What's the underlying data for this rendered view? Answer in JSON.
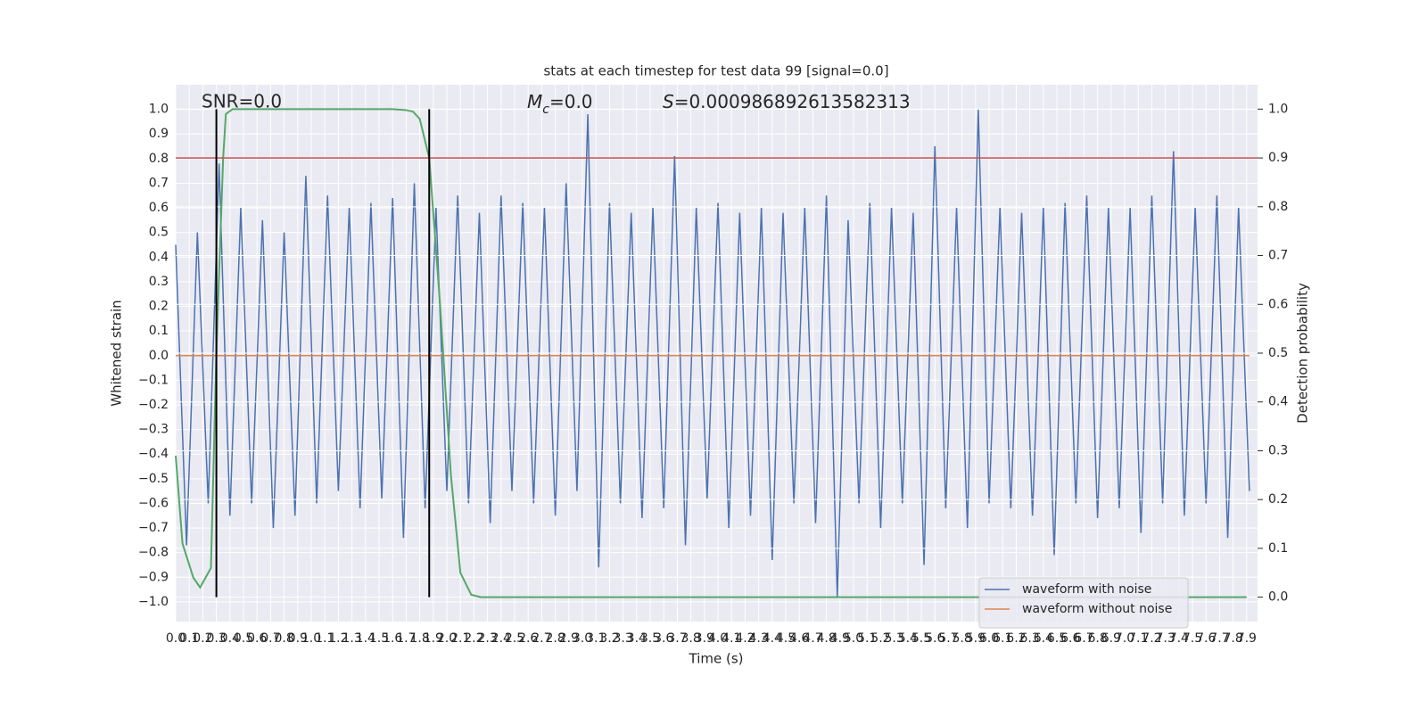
{
  "chart_data": {
    "type": "line",
    "title": "stats at each timestep for test data 99 [signal=0.0]",
    "annotations": {
      "snr": "SNR=0.0",
      "mc": {
        "symbol": "M",
        "sub": "c",
        "text": "=0.0"
      },
      "s": {
        "symbol": "S",
        "text": "=0.000986892613582313"
      }
    },
    "xlabel": "Time (s)",
    "ylabel": "Whitened strain",
    "y2label": "Detection probability",
    "xlim": [
      0,
      7.98
    ],
    "ylim": [
      -1.08,
      1.1
    ],
    "y2lim": [
      -0.05,
      1.05
    ],
    "xticks": [
      {
        "value": 0,
        "label": "0.0"
      },
      0.1,
      0.2,
      0.3,
      0.4,
      0.5,
      0.6,
      0.7,
      0.8,
      0.9,
      {
        "value": 1,
        "label": "1.0"
      },
      1.1,
      1.2,
      1.3,
      1.4,
      1.5,
      1.6,
      1.7,
      1.8,
      1.9,
      {
        "value": 2,
        "label": "2.0"
      },
      2.1,
      2.2,
      2.3,
      2.4,
      2.5,
      2.6,
      2.7,
      2.8,
      2.9,
      {
        "value": 3,
        "label": "3.0"
      },
      3.1,
      3.2,
      3.3,
      3.4,
      3.5,
      3.6,
      3.7,
      3.8,
      3.9,
      {
        "value": 4,
        "label": "4.0"
      },
      4.1,
      4.2,
      4.3,
      4.4,
      4.5,
      4.6,
      4.7,
      4.8,
      4.9,
      {
        "value": 5,
        "label": "5.0"
      },
      5.1,
      5.2,
      5.3,
      5.4,
      5.5,
      5.6,
      5.7,
      5.8,
      5.9,
      {
        "value": 6,
        "label": "6.0"
      },
      6.1,
      6.2,
      6.3,
      6.4,
      6.5,
      6.6,
      6.7,
      6.8,
      6.9,
      {
        "value": 7,
        "label": "7.0"
      },
      7.1,
      7.2,
      7.3,
      7.4,
      7.5,
      7.6,
      7.7,
      7.8,
      7.9
    ],
    "yticks": [
      {
        "value": -1,
        "label": "−1.0"
      },
      {
        "value": -0.9,
        "label": "−0.9"
      },
      {
        "value": -0.8,
        "label": "−0.8"
      },
      {
        "value": -0.7,
        "label": "−0.7"
      },
      {
        "value": -0.6,
        "label": "−0.6"
      },
      {
        "value": -0.5,
        "label": "−0.5"
      },
      {
        "value": -0.4,
        "label": "−0.4"
      },
      {
        "value": -0.3,
        "label": "−0.3"
      },
      {
        "value": -0.2,
        "label": "−0.2"
      },
      {
        "value": -0.1,
        "label": "−0.1"
      },
      {
        "value": 0,
        "label": "0.0"
      },
      0.1,
      0.2,
      0.3,
      0.4,
      0.5,
      0.6,
      0.7,
      0.8,
      0.9,
      {
        "value": 1,
        "label": "1.0"
      }
    ],
    "y2ticks": [
      {
        "value": 0,
        "label": "0.0"
      },
      0.1,
      0.2,
      0.3,
      0.4,
      0.5,
      0.6,
      0.7,
      0.8,
      0.9,
      {
        "value": 1,
        "label": "1.0"
      }
    ],
    "grid": true,
    "legend": "lower right",
    "series": [
      {
        "name": "waveform with noise",
        "color": "#4c72b0",
        "x": [
          0,
          0.08,
          0.16,
          0.24,
          0.32,
          0.4,
          0.48,
          0.56,
          0.64,
          0.72,
          0.8,
          0.88,
          0.96,
          1.04,
          1.12,
          1.2,
          1.28,
          1.36,
          1.44,
          1.52,
          1.6,
          1.68,
          1.76,
          1.84,
          1.92,
          2,
          2.08,
          2.16,
          2.24,
          2.32,
          2.4,
          2.48,
          2.56,
          2.64,
          2.72,
          2.8,
          2.88,
          2.96,
          3.04,
          3.12,
          3.2,
          3.28,
          3.36,
          3.44,
          3.52,
          3.6,
          3.68,
          3.76,
          3.84,
          3.92,
          4,
          4.08,
          4.16,
          4.24,
          4.32,
          4.4,
          4.48,
          4.56,
          4.64,
          4.72,
          4.8,
          4.88,
          4.96,
          5.04,
          5.12,
          5.2,
          5.28,
          5.36,
          5.44,
          5.52,
          5.6,
          5.68,
          5.76,
          5.84,
          5.92,
          6,
          6.08,
          6.16,
          6.24,
          6.32,
          6.4,
          6.48,
          6.56,
          6.64,
          6.72,
          6.8,
          6.88,
          6.96,
          7.04,
          7.12,
          7.2,
          7.28,
          7.36,
          7.44,
          7.52,
          7.6,
          7.68,
          7.76,
          7.84,
          7.92
        ],
        "values": [
          0.45,
          -0.77,
          0.5,
          -0.6,
          0.78,
          -0.65,
          0.6,
          -0.6,
          0.55,
          -0.7,
          0.5,
          -0.65,
          0.73,
          -0.6,
          0.65,
          -0.55,
          0.6,
          -0.62,
          0.62,
          -0.58,
          0.64,
          -0.74,
          0.7,
          -0.62,
          0.6,
          -0.55,
          0.65,
          -0.6,
          0.58,
          -0.68,
          0.65,
          -0.55,
          0.62,
          -0.6,
          0.6,
          -0.65,
          0.7,
          -0.55,
          0.98,
          -0.86,
          0.62,
          -0.6,
          0.58,
          -0.66,
          0.6,
          -0.62,
          0.81,
          -0.77,
          0.6,
          -0.58,
          0.62,
          -0.7,
          0.58,
          -0.65,
          0.6,
          -0.83,
          0.58,
          -0.6,
          0.6,
          -0.68,
          0.65,
          -0.98,
          0.55,
          -0.6,
          0.62,
          -0.7,
          0.6,
          -0.6,
          0.58,
          -0.85,
          0.85,
          -0.62,
          0.6,
          -0.7,
          1.0,
          -0.6,
          0.6,
          -0.62,
          0.58,
          -0.65,
          0.6,
          -0.81,
          0.62,
          -0.6,
          0.65,
          -0.66,
          0.6,
          -0.62,
          0.6,
          -0.72,
          0.65,
          -0.6,
          0.83,
          -0.65,
          0.6,
          -0.6,
          0.65,
          -0.74,
          0.6,
          -0.55
        ]
      },
      {
        "name": "waveform without noise",
        "color": "#dd8452",
        "x": [
          0,
          7.92
        ],
        "values": [
          0,
          0
        ]
      },
      {
        "color": "#55a868",
        "axis": "y2",
        "x": [
          0,
          0.05,
          0.13,
          0.18,
          0.26,
          0.3,
          0.35,
          0.37,
          0.42,
          1.0,
          1.6,
          1.7,
          1.75,
          1.8,
          1.87,
          1.95,
          2.03,
          2.1,
          2.18,
          2.25,
          3.0,
          5.0,
          7.9
        ],
        "values": [
          0.29,
          0.11,
          0.04,
          0.02,
          0.06,
          0.5,
          0.9,
          0.99,
          1.0,
          1.0,
          1.0,
          0.998,
          0.995,
          0.98,
          0.9,
          0.6,
          0.25,
          0.05,
          0.005,
          0.0,
          0.0,
          0.0,
          0.0
        ]
      }
    ],
    "vlines": {
      "color": "#000000",
      "x": [
        0.3,
        1.87
      ],
      "y2range": [
        0,
        1
      ]
    },
    "hline": {
      "axis": "y2",
      "value": 0.9,
      "color": "#c44e52"
    }
  }
}
